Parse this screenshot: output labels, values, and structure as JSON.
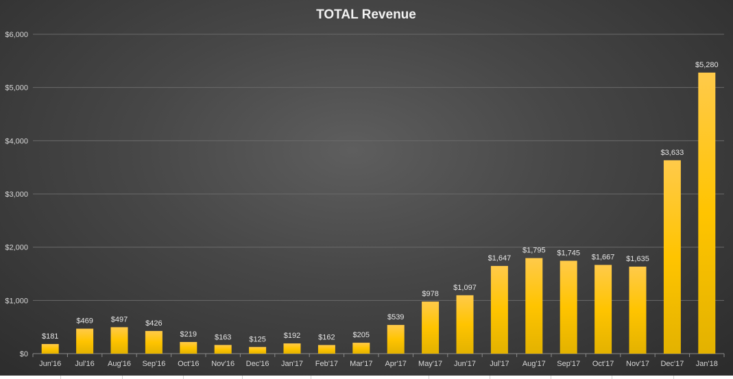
{
  "chart_data": {
    "type": "bar",
    "title": "TOTAL Revenue",
    "xlabel": "",
    "ylabel": "",
    "ylim": [
      0,
      6000
    ],
    "yticks": [
      "$0",
      "$1,000",
      "$2,000",
      "$3,000",
      "$4,000",
      "$5,000",
      "$6,000"
    ],
    "grid": true,
    "categories": [
      "Jun'16",
      "Jul'16",
      "Aug'16",
      "Sep'16",
      "Oct'16",
      "Nov'16",
      "Dec'16",
      "Jan'17",
      "Feb'17",
      "Mar'17",
      "Apr'17",
      "May'17",
      "Jun'17",
      "Jul'17",
      "Aug'17",
      "Sep'17",
      "Oct'17",
      "Nov'17",
      "Dec'17",
      "Jan'18"
    ],
    "values": [
      181,
      469,
      497,
      426,
      219,
      163,
      125,
      192,
      162,
      205,
      539,
      978,
      1097,
      1647,
      1795,
      1745,
      1667,
      1635,
      3633,
      5280
    ],
    "data_labels": [
      "$181",
      "$469",
      "$497",
      "$426",
      "$219",
      "$163",
      "$125",
      "$192",
      "$162",
      "$205",
      "$539",
      "$978",
      "$1,097",
      "$1,647",
      "$1,795",
      "$1,745",
      "$1,667",
      "$1,635",
      "$3,633",
      "$5,280"
    ],
    "bar_color": "#FFC000"
  }
}
